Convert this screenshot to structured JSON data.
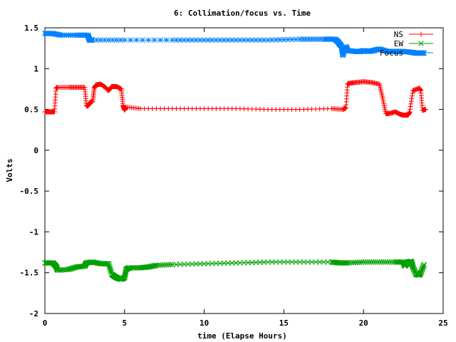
{
  "chart_data": {
    "type": "line",
    "title": "6: Collimation/focus vs. Time",
    "xlabel": "time (Elapse Hours)",
    "ylabel": "Volts",
    "xlim": [
      0,
      25
    ],
    "ylim": [
      -2,
      1.5
    ],
    "xticks": [
      0,
      5,
      10,
      15,
      20,
      25
    ],
    "yticks": [
      -2,
      -1.5,
      -1,
      -0.5,
      0,
      0.5,
      1,
      1.5
    ],
    "xtick_labels": [
      "0",
      "5",
      "10",
      "15",
      "20",
      "25"
    ],
    "ytick_labels": [
      "-2",
      "-1.5",
      "-1",
      "-0.5",
      "0",
      "0.5",
      "1",
      "1.5"
    ],
    "grid": false,
    "legend_position": "top-right",
    "series": [
      {
        "name": "NS",
        "color": "#ff0000",
        "marker": "plus",
        "x": [
          0,
          0.3,
          0.6,
          0.7,
          0.8,
          1.5,
          2.0,
          2.5,
          2.6,
          2.7,
          2.8,
          3.0,
          3.1,
          3.2,
          3.5,
          3.8,
          4.0,
          4.2,
          4.5,
          4.8,
          4.9,
          5.0,
          5.1,
          6.0,
          8.0,
          10.0,
          12.0,
          14.0,
          16.0,
          18.0,
          18.7,
          18.9,
          19.0,
          19.1,
          19.5,
          20.0,
          20.5,
          21.0,
          21.2,
          21.4,
          21.6,
          22.0,
          22.3,
          22.5,
          22.8,
          22.9,
          23.1,
          23.5,
          23.6,
          23.7,
          23.9
        ],
        "values": [
          0.47,
          0.47,
          0.47,
          0.76,
          0.77,
          0.77,
          0.77,
          0.77,
          0.55,
          0.54,
          0.58,
          0.6,
          0.76,
          0.8,
          0.81,
          0.77,
          0.73,
          0.78,
          0.78,
          0.75,
          0.55,
          0.49,
          0.53,
          0.51,
          0.51,
          0.51,
          0.51,
          0.5,
          0.5,
          0.51,
          0.5,
          0.52,
          0.81,
          0.82,
          0.83,
          0.84,
          0.83,
          0.81,
          0.64,
          0.45,
          0.45,
          0.47,
          0.44,
          0.43,
          0.43,
          0.47,
          0.73,
          0.76,
          0.73,
          0.49,
          0.5
        ]
      },
      {
        "name": "EW",
        "color": "#00a000",
        "marker": "cross",
        "x": [
          0,
          0.5,
          0.7,
          0.8,
          1.5,
          2.0,
          2.5,
          2.6,
          3.0,
          3.5,
          4.0,
          4.2,
          4.4,
          4.6,
          4.8,
          5.0,
          5.1,
          5.3,
          6.0,
          6.5,
          7.0,
          8.0,
          10.0,
          12.0,
          14.0,
          16.0,
          18.0,
          18.5,
          19.0,
          20.0,
          21.0,
          22.0,
          22.5,
          22.6,
          22.8,
          23.0,
          23.1,
          23.3,
          23.5,
          23.6,
          23.8
        ],
        "values": [
          -1.38,
          -1.38,
          -1.42,
          -1.47,
          -1.46,
          -1.43,
          -1.42,
          -1.38,
          -1.37,
          -1.39,
          -1.39,
          -1.52,
          -1.55,
          -1.57,
          -1.58,
          -1.56,
          -1.46,
          -1.44,
          -1.44,
          -1.43,
          -1.41,
          -1.4,
          -1.39,
          -1.38,
          -1.37,
          -1.37,
          -1.37,
          -1.38,
          -1.38,
          -1.37,
          -1.37,
          -1.37,
          -1.37,
          -1.42,
          -1.37,
          -1.36,
          -1.43,
          -1.52,
          -1.53,
          -1.5,
          -1.4
        ]
      },
      {
        "name": "Focus",
        "color": "#0080ff",
        "marker": "star",
        "x": [
          0,
          0.5,
          1.0,
          2.0,
          2.7,
          2.8,
          3.0,
          5.0,
          8.0,
          10.0,
          12.0,
          14.0,
          16.0,
          17.5,
          18.2,
          18.4,
          18.5,
          18.6,
          18.7,
          18.9,
          19.0,
          19.5,
          19.8,
          20.0,
          20.3,
          20.6,
          21.0,
          21.5,
          22.0,
          22.5,
          23.0,
          23.3,
          23.5,
          23.8
        ],
        "values": [
          1.43,
          1.43,
          1.41,
          1.41,
          1.41,
          1.35,
          1.35,
          1.35,
          1.35,
          1.35,
          1.35,
          1.35,
          1.36,
          1.36,
          1.36,
          1.33,
          1.3,
          1.28,
          1.16,
          1.27,
          1.22,
          1.21,
          1.21,
          1.22,
          1.21,
          1.22,
          1.24,
          1.21,
          1.21,
          1.21,
          1.2,
          1.19,
          1.19,
          1.19
        ]
      }
    ]
  }
}
